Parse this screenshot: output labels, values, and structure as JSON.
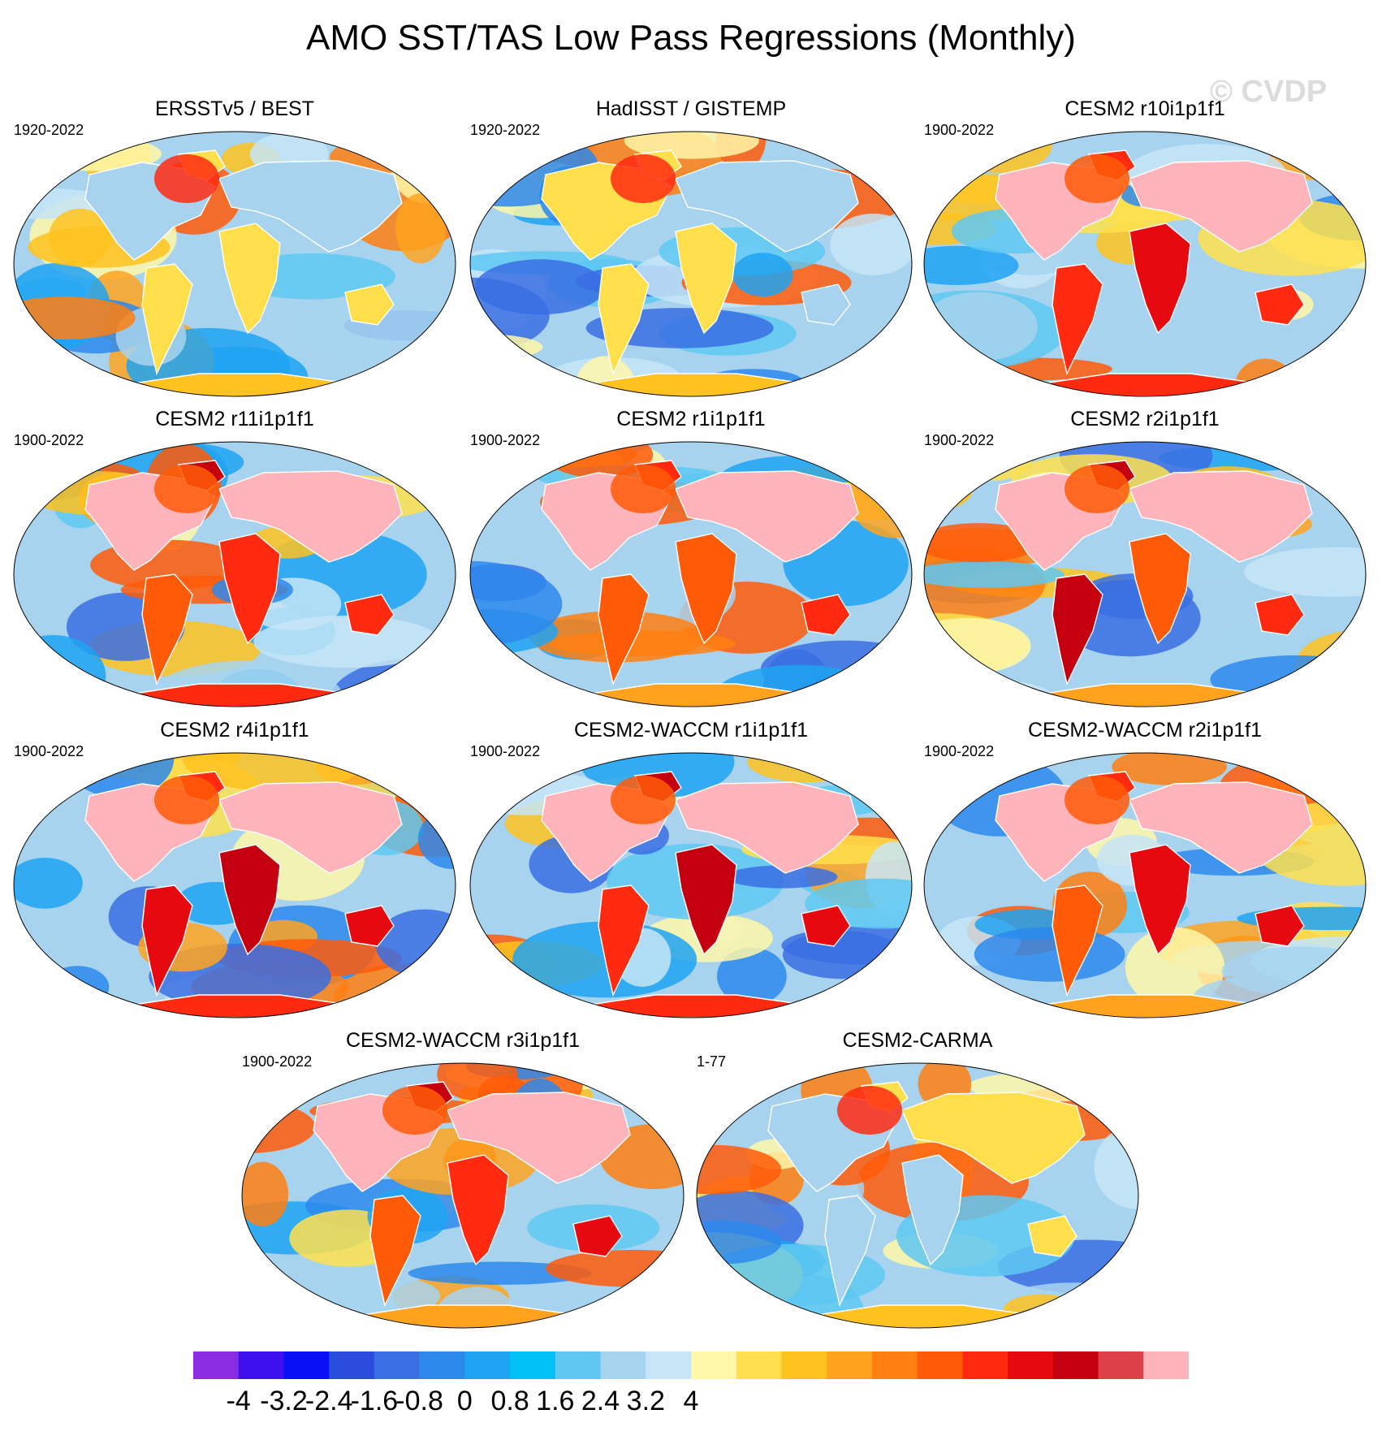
{
  "title": "AMO SST/TAS Low Pass Regressions (Monthly)",
  "watermark": "© CVDP",
  "panels": [
    {
      "title": "ERSSTv5 / BEST",
      "years": "1920-2022"
    },
    {
      "title": "HadISST / GISTEMP",
      "years": "1920-2022"
    },
    {
      "title": "CESM2 r10i1p1f1",
      "years": "1900-2022"
    },
    {
      "title": "CESM2 r11i1p1f1",
      "years": "1900-2022"
    },
    {
      "title": "CESM2 r1i1p1f1",
      "years": "1900-2022"
    },
    {
      "title": "CESM2 r2i1p1f1",
      "years": "1900-2022"
    },
    {
      "title": "CESM2 r4i1p1f1",
      "years": "1900-2022"
    },
    {
      "title": "CESM2-WACCM r1i1p1f1",
      "years": "1900-2022"
    },
    {
      "title": "CESM2-WACCM r2i1p1f1",
      "years": "1900-2022"
    },
    {
      "title": "CESM2-WACCM r3i1p1f1",
      "years": "1900-2022"
    },
    {
      "title": "CESM2-CARMA",
      "years": "1-77"
    }
  ],
  "colorbar": {
    "colors": [
      "#8b2be2",
      "#3d10ee",
      "#0a10f5",
      "#2b4ddd",
      "#3a6fe3",
      "#2d88ec",
      "#1ea3f2",
      "#00c0f5",
      "#5ec8f2",
      "#a7d3ee",
      "#c6e5f6",
      "#fff7a8",
      "#ffe04c",
      "#ffc21f",
      "#ffa31f",
      "#ff7f11",
      "#ff5a08",
      "#ff2a10",
      "#e60a10",
      "#c40010",
      "#de4048",
      "#ffb3ba"
    ],
    "labels": [
      "-4",
      "-3.2",
      "-2.4",
      "-1.6",
      "-0.8",
      "0",
      "0.8",
      "1.6",
      "2.4",
      "3.2",
      "4"
    ]
  }
}
